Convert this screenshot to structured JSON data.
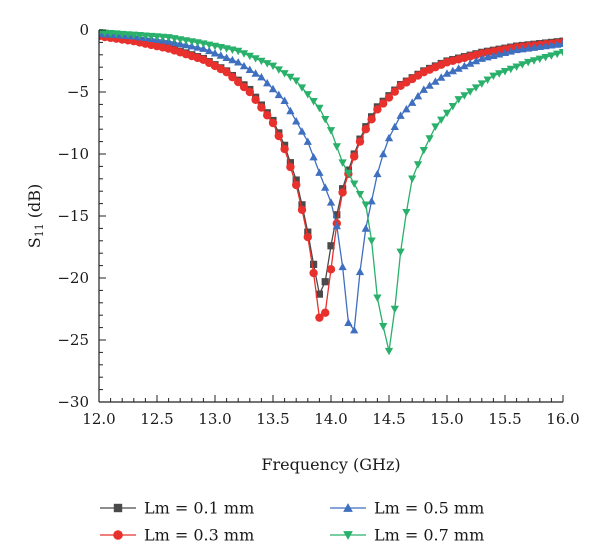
{
  "chart_data": {
    "type": "line",
    "title": "",
    "xlabel": "Frequency (GHz)",
    "ylabel_main": "S",
    "ylabel_sub": "11",
    "ylabel_unit": " (dB)",
    "xlim": [
      12.0,
      16.0
    ],
    "ylim": [
      -30,
      0
    ],
    "xticks": [
      "12.0",
      "12.5",
      "13.0",
      "13.5",
      "14.0",
      "14.5",
      "15.0",
      "15.5",
      "16.0"
    ],
    "yticks": [
      "0",
      "−5",
      "−10",
      "−15",
      "−20",
      "−25",
      "−30"
    ],
    "grid": false,
    "legend_position": "bottom",
    "series": [
      {
        "name": "Lm = 0.1 mm",
        "marker": "square",
        "color": "#4a4a4a",
        "x": [
          12.0,
          12.3,
          12.6,
          12.9,
          13.1,
          13.3,
          13.5,
          13.6,
          13.7,
          13.75,
          13.8,
          13.85,
          13.9,
          13.95,
          14.0,
          14.05,
          14.1,
          14.15,
          14.2,
          14.25,
          14.3,
          14.4,
          14.6,
          14.8,
          15.0,
          15.3,
          15.6,
          16.0
        ],
        "y": [
          -0.4,
          -0.8,
          -1.4,
          -2.3,
          -3.3,
          -4.8,
          -7.3,
          -9.3,
          -12.1,
          -14.1,
          -16.3,
          -18.9,
          -21.3,
          -20.3,
          -17.4,
          -14.9,
          -12.8,
          -11.3,
          -10.0,
          -8.8,
          -7.8,
          -6.2,
          -4.4,
          -3.3,
          -2.5,
          -1.8,
          -1.3,
          -0.9
        ]
      },
      {
        "name": "Lm = 0.3 mm",
        "marker": "circle",
        "color": "#e8302c",
        "x": [
          12.0,
          12.3,
          12.6,
          12.9,
          13.1,
          13.3,
          13.5,
          13.6,
          13.7,
          13.75,
          13.8,
          13.85,
          13.9,
          13.95,
          14.0,
          14.05,
          14.1,
          14.15,
          14.2,
          14.25,
          14.3,
          14.4,
          14.6,
          14.8,
          15.0,
          15.3,
          15.6,
          16.0
        ],
        "y": [
          -0.5,
          -0.9,
          -1.5,
          -2.4,
          -3.4,
          -5.0,
          -7.5,
          -9.6,
          -12.5,
          -14.5,
          -16.7,
          -19.6,
          -23.2,
          -22.8,
          -19.3,
          -15.6,
          -13.1,
          -11.6,
          -10.2,
          -9.0,
          -8.0,
          -6.4,
          -4.5,
          -3.4,
          -2.6,
          -1.9,
          -1.4,
          -1.0
        ]
      },
      {
        "name": "Lm = 0.5 mm",
        "marker": "triangle-up",
        "color": "#3f6fbf",
        "x": [
          12.0,
          12.3,
          12.6,
          12.9,
          13.2,
          13.4,
          13.6,
          13.8,
          13.9,
          14.0,
          14.05,
          14.1,
          14.15,
          14.2,
          14.25,
          14.3,
          14.35,
          14.4,
          14.45,
          14.5,
          14.6,
          14.8,
          15.0,
          15.3,
          15.6,
          16.0
        ],
        "y": [
          -0.3,
          -0.5,
          -0.9,
          -1.5,
          -2.6,
          -3.8,
          -5.7,
          -9.0,
          -11.5,
          -13.9,
          -15.8,
          -19.1,
          -23.6,
          -24.2,
          -19.5,
          -16.0,
          -13.8,
          -11.6,
          -10.0,
          -8.7,
          -6.9,
          -4.8,
          -3.5,
          -2.3,
          -1.6,
          -1.1
        ]
      },
      {
        "name": "Lm = 0.7 mm",
        "marker": "triangle-down",
        "color": "#29b06a",
        "x": [
          12.0,
          12.3,
          12.6,
          12.9,
          13.2,
          13.5,
          13.7,
          13.9,
          14.0,
          14.1,
          14.2,
          14.3,
          14.35,
          14.4,
          14.45,
          14.5,
          14.55,
          14.6,
          14.65,
          14.7,
          14.8,
          14.9,
          15.1,
          15.4,
          15.7,
          16.0
        ],
        "y": [
          -0.2,
          -0.4,
          -0.6,
          -1.1,
          -1.7,
          -2.9,
          -4.1,
          -6.3,
          -8.1,
          -10.7,
          -12.4,
          -14.1,
          -17.0,
          -21.6,
          -23.9,
          -25.9,
          -22.5,
          -17.9,
          -14.7,
          -12.0,
          -9.7,
          -7.8,
          -5.6,
          -3.7,
          -2.6,
          -1.8
        ]
      }
    ]
  }
}
